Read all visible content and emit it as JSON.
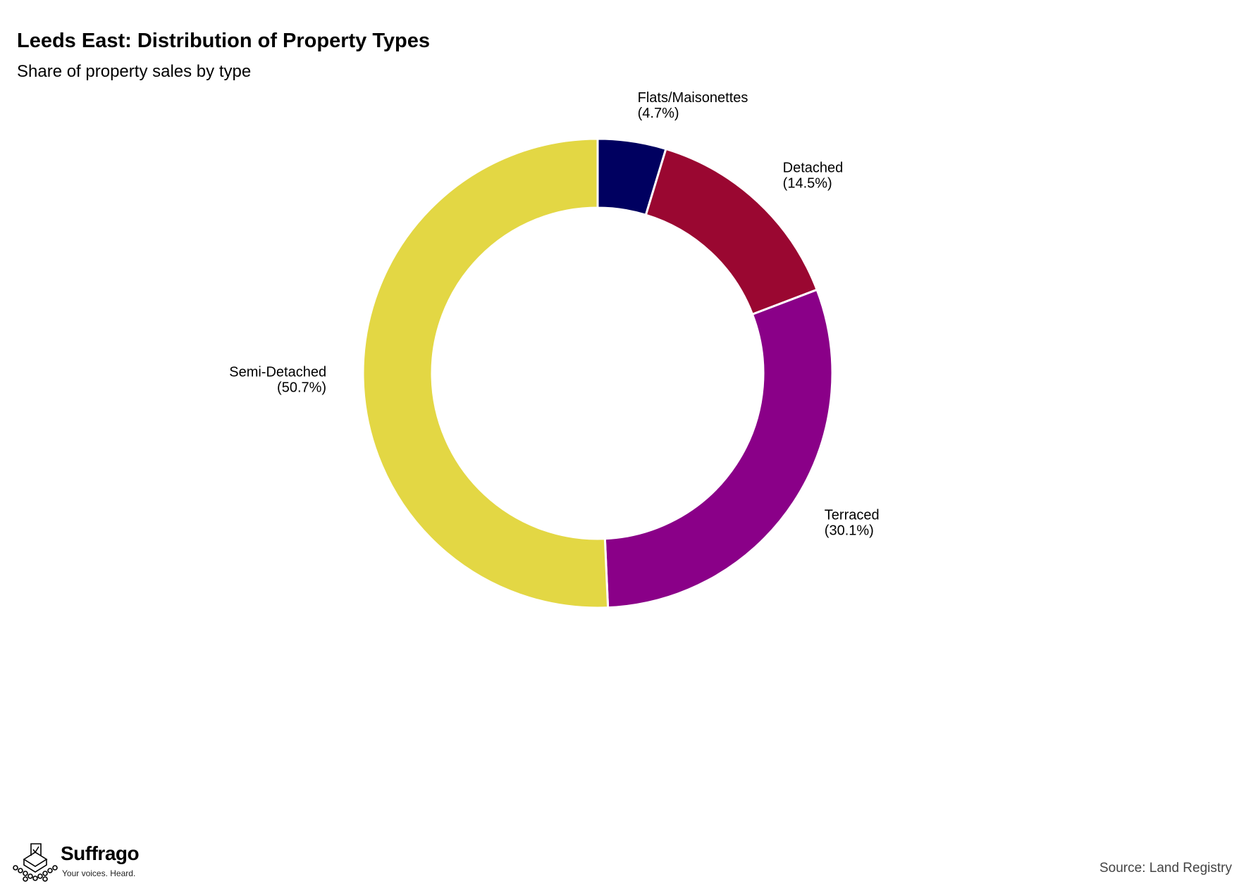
{
  "title": "Leeds East: Distribution of Property Types",
  "subtitle": "Share of property sales by type",
  "source": "Source: Land Registry",
  "brand": {
    "name": "Suffrago",
    "tagline": "Your voices. Heard."
  },
  "chart_data": {
    "type": "pie",
    "donut": true,
    "start": "12 o'clock",
    "direction": "clockwise",
    "legend": "none",
    "categories": [
      "Flats/Maisonettes",
      "Detached",
      "Terraced",
      "Semi-Detached"
    ],
    "values": [
      4.7,
      14.5,
      30.1,
      50.7
    ],
    "value_labels": [
      "(4.7%)",
      "(14.5%)",
      "(30.1%)",
      "(50.7%)"
    ],
    "colors": [
      "#000060",
      "#9a0731",
      "#8a0088",
      "#e3d744"
    ]
  }
}
